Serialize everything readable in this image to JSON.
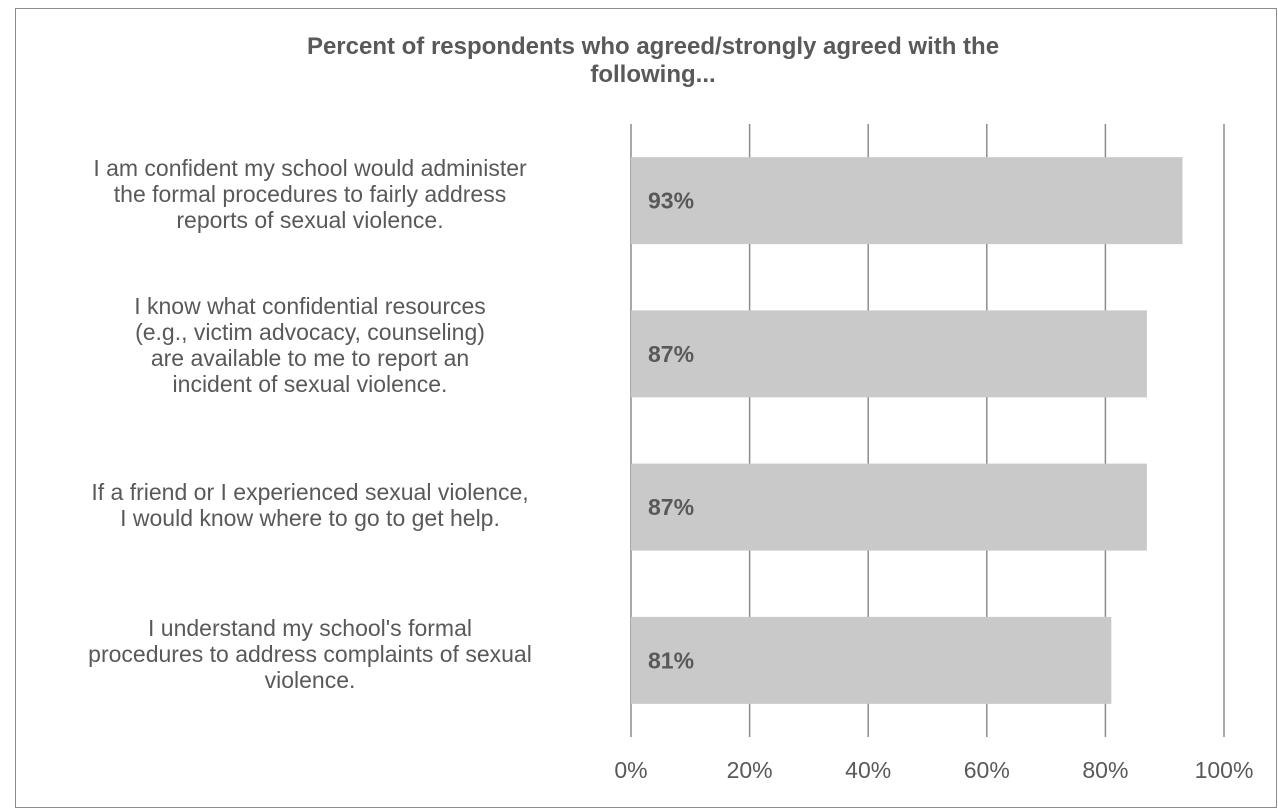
{
  "chart_data": {
    "type": "bar",
    "orientation": "horizontal",
    "title": "Percent of respondents who agreed/strongly agreed with the\nfollowing...",
    "categories": [
      "I am confident my school would administer\nthe formal procedures to fairly address\nreports of sexual violence.",
      "I know what confidential resources\n(e.g., victim advocacy, counseling)\nare available to me to report an\nincident of sexual violence.",
      "If a friend or I experienced sexual violence,\nI would know where to go to get help.",
      "I understand my school's formal\nprocedures to address complaints of sexual\nviolence."
    ],
    "values": [
      93,
      87,
      87,
      81
    ],
    "data_labels": [
      "93%",
      "87%",
      "87%",
      "81%"
    ],
    "xlim": [
      0,
      100
    ],
    "ticks": [
      0,
      20,
      40,
      60,
      80,
      100
    ],
    "tick_labels": [
      "0%",
      "20%",
      "40%",
      "60%",
      "80%",
      "100%"
    ],
    "grid": true,
    "legend": "none",
    "colors": {
      "bar": "#c9c9ca",
      "grid": "#8c8c8c",
      "text": "#595959"
    }
  }
}
